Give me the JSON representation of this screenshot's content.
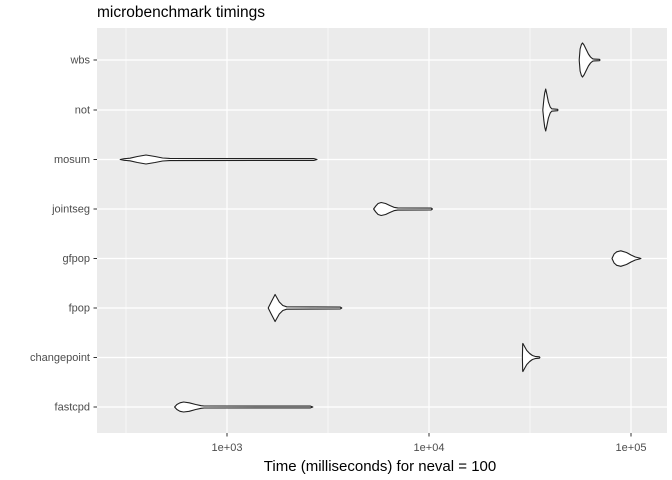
{
  "title": "microbenchmark timings",
  "chart_data": {
    "type": "violin",
    "orientation": "horizontal",
    "title": "microbenchmark timings",
    "xlabel": "Time (milliseconds) for neval = 100",
    "ylabel": "",
    "x_scale": "log10",
    "xlim_ms": [
      230,
      150000
    ],
    "grid": "on",
    "legend": "none",
    "x_ticks": [
      {
        "label": "1e+03",
        "ms": 1000
      },
      {
        "label": "1e+04",
        "ms": 10000
      },
      {
        "label": "1e+05",
        "ms": 100000
      }
    ],
    "x_minor_ms": [
      316.23,
      3162.28,
      31622.78
    ],
    "categories": [
      "wbs",
      "not",
      "mosum",
      "jointseg",
      "gfpop",
      "fpop",
      "changepoint",
      "fastcpd"
    ],
    "violins": [
      {
        "name": "wbs",
        "min_ms": 55400,
        "peak_ms": 57500,
        "max_ms": 70200,
        "profile": [
          [
            55400,
            0
          ],
          [
            56000,
            22
          ],
          [
            56800,
            31
          ],
          [
            57500,
            34
          ],
          [
            58500,
            30
          ],
          [
            60000,
            21
          ],
          [
            61500,
            12
          ],
          [
            63000,
            6
          ],
          [
            64500,
            2.6
          ],
          [
            65500,
            1.8
          ],
          [
            69800,
            1.4
          ],
          [
            70200,
            0
          ]
        ]
      },
      {
        "name": "not",
        "min_ms": 36600,
        "peak_ms": 37800,
        "max_ms": 43500,
        "profile": [
          [
            36600,
            0
          ],
          [
            37000,
            20
          ],
          [
            37400,
            34
          ],
          [
            37800,
            42
          ],
          [
            38300,
            32
          ],
          [
            39000,
            16
          ],
          [
            39800,
            6
          ],
          [
            40500,
            2.4
          ],
          [
            43300,
            1.4
          ],
          [
            43500,
            0
          ]
        ]
      },
      {
        "name": "mosum",
        "min_ms": 296,
        "peak_ms": 397,
        "max_ms": 2790,
        "profile": [
          [
            296,
            0
          ],
          [
            310,
            1.7
          ],
          [
            331,
            2.6
          ],
          [
            360,
            6
          ],
          [
            397,
            9
          ],
          [
            440,
            6
          ],
          [
            480,
            3
          ],
          [
            520,
            2.2
          ],
          [
            2700,
            1.8
          ],
          [
            2790,
            0
          ]
        ]
      },
      {
        "name": "jointseg",
        "min_ms": 5320,
        "peak_ms": 5800,
        "max_ms": 10400,
        "profile": [
          [
            5320,
            0
          ],
          [
            5450,
            6
          ],
          [
            5600,
            11
          ],
          [
            5800,
            13
          ],
          [
            6100,
            11
          ],
          [
            6400,
            7
          ],
          [
            6700,
            3.4
          ],
          [
            7000,
            2.2
          ],
          [
            10250,
            1.8
          ],
          [
            10400,
            0
          ]
        ]
      },
      {
        "name": "gfpop",
        "min_ms": 80500,
        "peak_ms": 89000,
        "max_ms": 112000,
        "profile": [
          [
            80500,
            0
          ],
          [
            82500,
            9
          ],
          [
            85000,
            13.5
          ],
          [
            89000,
            15.5
          ],
          [
            95000,
            12
          ],
          [
            100000,
            7
          ],
          [
            105000,
            3
          ],
          [
            110000,
            1
          ],
          [
            112000,
            0
          ]
        ]
      },
      {
        "name": "fpop",
        "min_ms": 1600,
        "peak_ms": 1730,
        "max_ms": 3700,
        "profile": [
          [
            1600,
            0
          ],
          [
            1655,
            12
          ],
          [
            1730,
            27
          ],
          [
            1815,
            12
          ],
          [
            1890,
            5
          ],
          [
            1975,
            2.4
          ],
          [
            3640,
            1.8
          ],
          [
            3700,
            0
          ]
        ]
      },
      {
        "name": "changepoint",
        "min_ms": 29000,
        "peak_ms": 29150,
        "max_ms": 35400,
        "profile": [
          [
            29000,
            0
          ],
          [
            29100,
            27
          ],
          [
            29150,
            28
          ],
          [
            29800,
            21
          ],
          [
            30500,
            14
          ],
          [
            31500,
            8
          ],
          [
            32500,
            4
          ],
          [
            33500,
            2.2
          ],
          [
            35200,
            1.4
          ],
          [
            35400,
            0
          ]
        ]
      },
      {
        "name": "fastcpd",
        "min_ms": 550,
        "peak_ms": 610,
        "max_ms": 2660,
        "profile": [
          [
            550,
            0
          ],
          [
            565,
            5
          ],
          [
            585,
            8.5
          ],
          [
            610,
            10
          ],
          [
            650,
            8.5
          ],
          [
            700,
            5
          ],
          [
            745,
            2.6
          ],
          [
            770,
            2
          ],
          [
            2590,
            1.8
          ],
          [
            2660,
            0
          ]
        ]
      }
    ],
    "style": {
      "panel_bg": "#EBEBEB",
      "grid_major": "#FFFFFF",
      "grid_minor": "#FFFFFF",
      "violin_fill": "#FFFFFF",
      "violin_stroke": "#1F1F1F",
      "tick_mark": "#333333",
      "axis_text": "#4D4D4D",
      "title_color": "#000000"
    }
  }
}
